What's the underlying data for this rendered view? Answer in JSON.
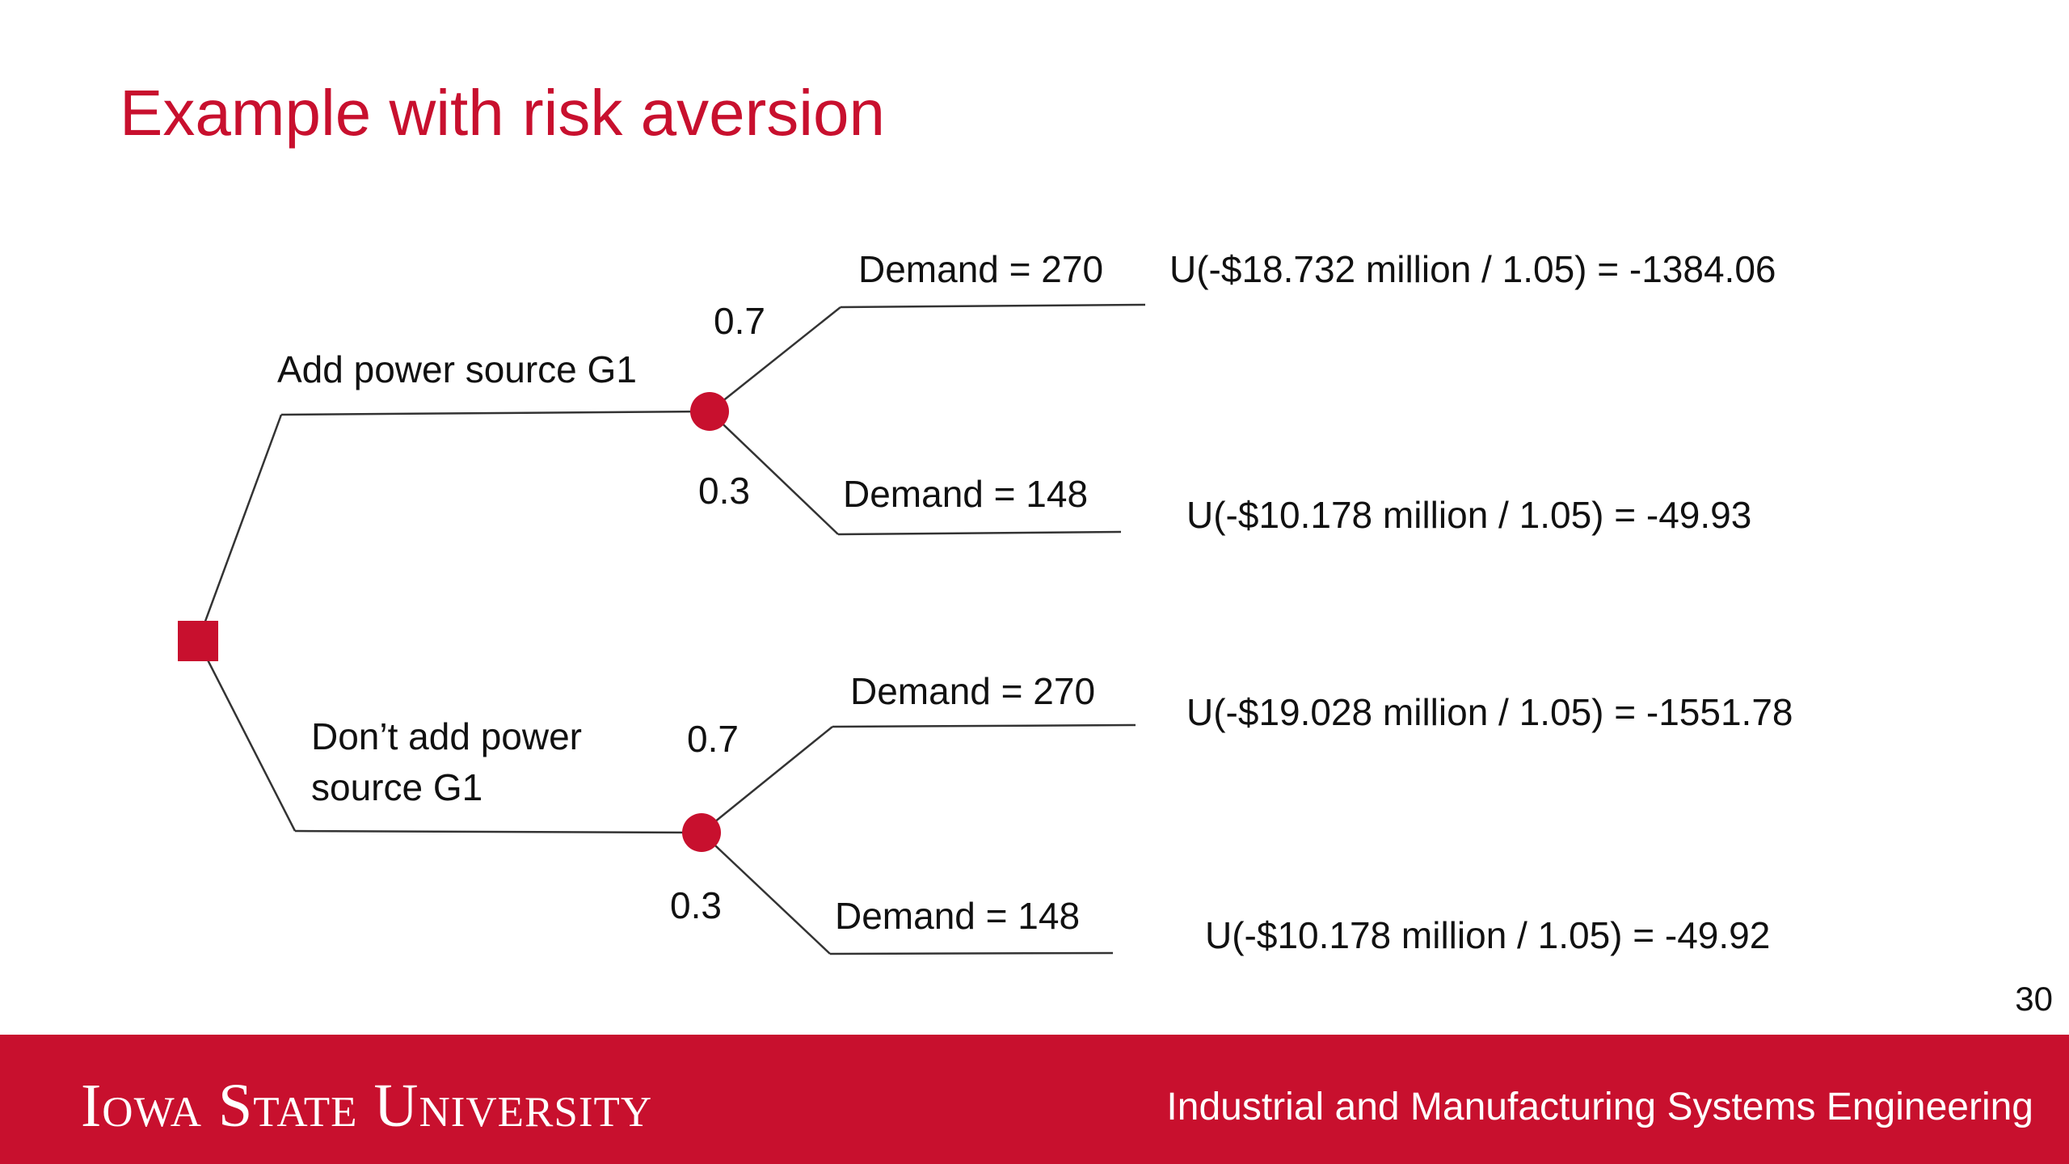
{
  "slide": {
    "title": "Example with risk aversion",
    "page_number": "30"
  },
  "tree": {
    "branches": [
      {
        "label": "Add power source G1",
        "outcomes": [
          {
            "probability": "0.7",
            "label": "Demand = 270",
            "utility": "U(-$18.732 million / 1.05) = -1384.06"
          },
          {
            "probability": "0.3",
            "label": "Demand = 148",
            "utility": "U(-$10.178 million / 1.05) = -49.93"
          }
        ]
      },
      {
        "label": "Don’t add power\nsource G1",
        "outcomes": [
          {
            "probability": "0.7",
            "label": "Demand = 270",
            "utility": "U(-$19.028 million / 1.05) = -1551.78"
          },
          {
            "probability": "0.3",
            "label": "Demand = 148",
            "utility": "U(-$10.178 million / 1.05) = -49.92"
          }
        ]
      }
    ],
    "colors": {
      "node": "#c8102e",
      "line": "#333333"
    }
  },
  "footer": {
    "logo_text": "Iowa State University",
    "department": "Industrial and Manufacturing Systems Engineering",
    "color": "#c8102e"
  }
}
